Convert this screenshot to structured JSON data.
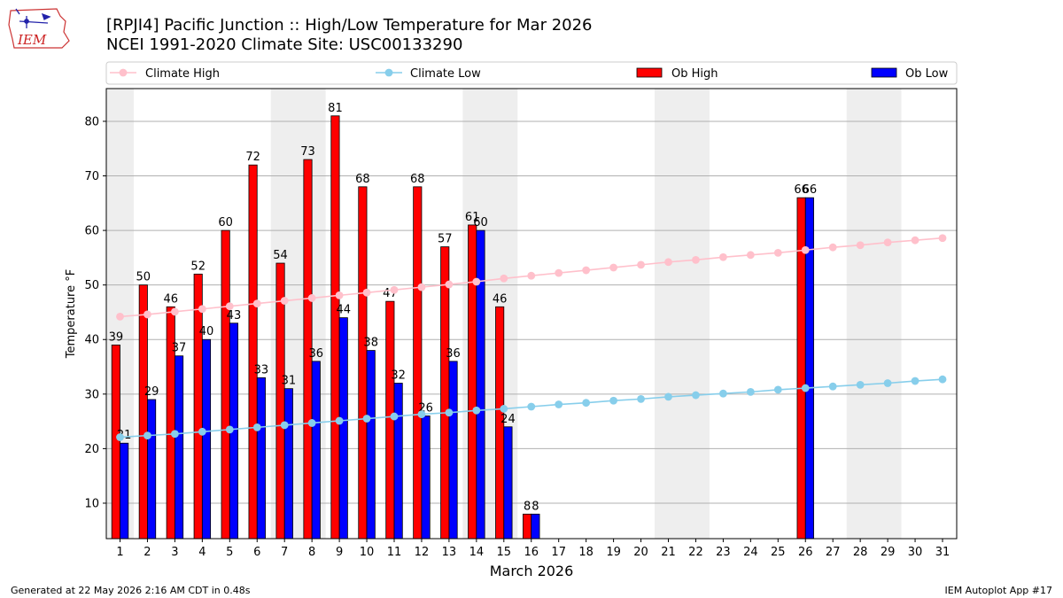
{
  "header": {
    "title": "[RPJI4] Pacific Junction :: High/Low Temperature for Mar 2026",
    "subtitle": "NCEI 1991-2020 Climate Site: USC00133290",
    "logo_text": "IEM"
  },
  "footer": {
    "generated": "Generated at 22 May 2026 2:16 AM CDT in 0.48s",
    "app": "IEM Autoplot App #17"
  },
  "colors": {
    "ob_high": "#ff0000",
    "ob_low": "#0000ff",
    "climate_high": "#ffc0cb",
    "climate_low": "#87ceeb",
    "weekend_shade": "#eeeeee",
    "grid": "#b0b0b0"
  },
  "chart_data": {
    "type": "bar",
    "xlabel": "March 2026",
    "ylabel": "Temperature °F",
    "ylim": [
      3.5,
      86
    ],
    "yticks": [
      10,
      20,
      30,
      40,
      50,
      60,
      70,
      80
    ],
    "grid": "horizontal",
    "legend_position": "top",
    "categories": [
      "1",
      "2",
      "3",
      "4",
      "5",
      "6",
      "7",
      "8",
      "9",
      "10",
      "11",
      "12",
      "13",
      "14",
      "15",
      "16",
      "17",
      "18",
      "19",
      "20",
      "21",
      "22",
      "23",
      "24",
      "25",
      "26",
      "27",
      "28",
      "29",
      "30",
      "31"
    ],
    "shaded_days": [
      [
        1,
        1
      ],
      [
        7,
        8
      ],
      [
        14,
        15
      ],
      [
        21,
        22
      ],
      [
        28,
        29
      ]
    ],
    "series": [
      {
        "name": "Ob High",
        "kind": "bar",
        "values": [
          39,
          50,
          46,
          52,
          60,
          72,
          54,
          73,
          81,
          68,
          47,
          68,
          57,
          61,
          46,
          8,
          null,
          null,
          null,
          null,
          null,
          null,
          null,
          null,
          null,
          66,
          null,
          null,
          null,
          null,
          null
        ],
        "labels": [
          "39",
          "50",
          "46",
          "52",
          "60",
          "72",
          "54",
          "73",
          "81",
          "68",
          "47",
          "68",
          "57",
          "61",
          "46",
          "8",
          "",
          "",
          "",
          "",
          "",
          "",
          "",
          "",
          "",
          "66",
          "",
          "",
          "",
          "",
          ""
        ]
      },
      {
        "name": "Ob Low",
        "kind": "bar",
        "values": [
          21,
          29,
          37,
          40,
          43,
          33,
          31,
          36,
          44,
          38,
          32,
          26,
          36,
          60,
          24,
          8,
          null,
          null,
          null,
          null,
          null,
          null,
          null,
          null,
          null,
          66,
          null,
          null,
          null,
          null,
          null
        ],
        "labels": [
          "21",
          "29",
          "37",
          "40",
          "43",
          "33",
          "31",
          "36",
          "44",
          "38",
          "32",
          "26",
          "36",
          "60",
          "24",
          "8",
          "",
          "",
          "",
          "",
          "",
          "",
          "",
          "",
          "",
          "66",
          "",
          "",
          "",
          "",
          ""
        ]
      },
      {
        "name": "Climate High",
        "kind": "line",
        "values": [
          44.2,
          44.6,
          45.1,
          45.6,
          46.1,
          46.6,
          47.1,
          47.6,
          48.1,
          48.6,
          49.1,
          49.6,
          50.1,
          50.6,
          51.2,
          51.7,
          52.2,
          52.7,
          53.2,
          53.7,
          54.2,
          54.6,
          55.1,
          55.5,
          55.9,
          56.4,
          56.9,
          57.3,
          57.8,
          58.2,
          58.6
        ]
      },
      {
        "name": "Climate Low",
        "kind": "line",
        "values": [
          22.1,
          22.4,
          22.7,
          23.1,
          23.5,
          23.9,
          24.3,
          24.7,
          25.1,
          25.5,
          25.9,
          26.3,
          26.6,
          27.0,
          27.3,
          27.7,
          28.1,
          28.4,
          28.8,
          29.1,
          29.5,
          29.8,
          30.1,
          30.4,
          30.8,
          31.1,
          31.4,
          31.7,
          32.0,
          32.4,
          32.7
        ]
      }
    ]
  }
}
